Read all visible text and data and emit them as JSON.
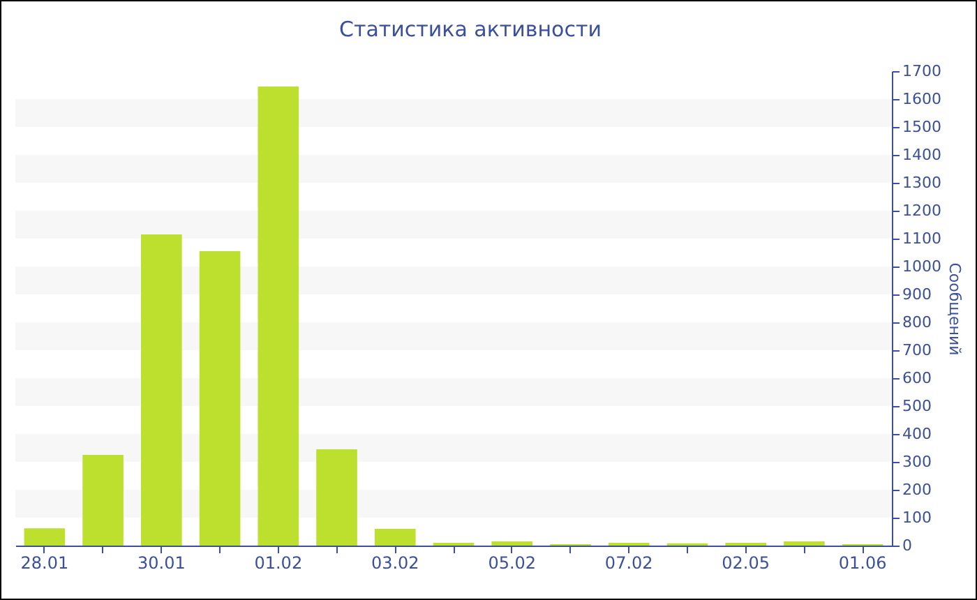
{
  "chart_data": {
    "type": "bar",
    "title": "Статистика активности",
    "ylabel": "Сообщений",
    "categories": [
      "28.01",
      null,
      "30.01",
      null,
      "01.02",
      null,
      "03.02",
      null,
      "05.02",
      null,
      "07.02",
      null,
      "02.05",
      null,
      "01.06"
    ],
    "values": [
      62,
      325,
      1115,
      1055,
      1645,
      345,
      60,
      10,
      15,
      5,
      10,
      8,
      10,
      15,
      5
    ],
    "color": "#bde02f",
    "ylim": [
      0,
      1700
    ],
    "yticks": [
      0,
      100,
      200,
      300,
      400,
      500,
      600,
      700,
      800,
      900,
      1000,
      1100,
      1200,
      1300,
      1400,
      1500,
      1600,
      1700
    ],
    "bands": [
      {
        "axis": "y",
        "from": 100,
        "to": 200,
        "color": "#f7f7f7"
      },
      {
        "axis": "y",
        "from": 300,
        "to": 400,
        "color": "#f7f7f7"
      },
      {
        "axis": "y",
        "from": 500,
        "to": 600,
        "color": "#f7f7f7"
      },
      {
        "axis": "y",
        "from": 700,
        "to": 800,
        "color": "#f7f7f7"
      },
      {
        "axis": "y",
        "from": 900,
        "to": 1000,
        "color": "#f7f7f7"
      },
      {
        "axis": "y",
        "from": 1100,
        "to": 1200,
        "color": "#f7f7f7"
      },
      {
        "axis": "y",
        "from": 1300,
        "to": 1400,
        "color": "#f7f7f7"
      },
      {
        "axis": "y",
        "from": 1500,
        "to": 1600,
        "color": "#f7f7f7"
      }
    ]
  }
}
